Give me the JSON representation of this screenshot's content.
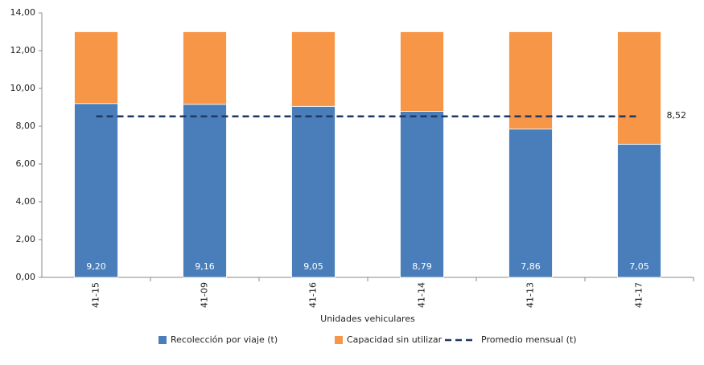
{
  "chart_data": {
    "type": "stacked_bar",
    "x_label": "Unidades vehiculares",
    "categories": [
      "41-15",
      "41-09",
      "41-16",
      "41-14",
      "41-13",
      "41-17"
    ],
    "series": [
      {
        "name": "Recolección por viaje (t)",
        "color": "#4a7ebb",
        "values": [
          9.2,
          9.16,
          9.05,
          8.79,
          7.86,
          7.05
        ],
        "value_labels": [
          "9,20",
          "9,16",
          "9,05",
          "8,79",
          "7,86",
          "7,05"
        ]
      },
      {
        "name": "Capacidad sin utilizar",
        "color": "#f79646",
        "values": [
          3.8,
          3.84,
          3.95,
          4.21,
          5.14,
          5.95
        ]
      }
    ],
    "reference_line": {
      "name": "Promedio mensual (t)",
      "color": "#1f3864",
      "value": 8.52,
      "value_label": "8,52"
    },
    "ylim": [
      0,
      14
    ],
    "yticks": [
      {
        "value": 0,
        "label": "0,00"
      },
      {
        "value": 2,
        "label": "2,00"
      },
      {
        "value": 4,
        "label": "4,00"
      },
      {
        "value": 6,
        "label": "6,00"
      },
      {
        "value": 8,
        "label": "8,00"
      },
      {
        "value": 10,
        "label": "10,00"
      },
      {
        "value": 12,
        "label": "12,00"
      },
      {
        "value": 14,
        "label": "14,00"
      }
    ]
  }
}
